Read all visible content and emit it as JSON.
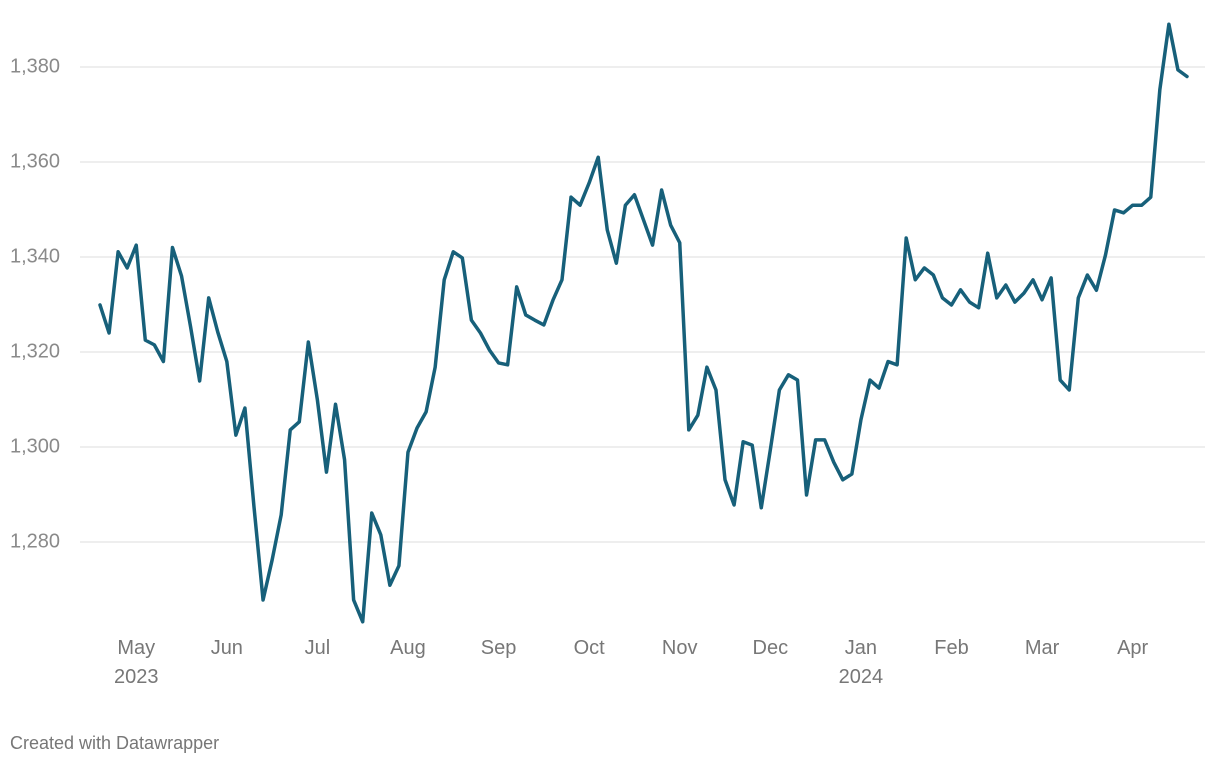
{
  "chart_data": {
    "type": "line",
    "categories": [
      null,
      null,
      null,
      null,
      "May 2023",
      null,
      null,
      null,
      null,
      null,
      null,
      null,
      null,
      null,
      "Jun",
      null,
      null,
      null,
      null,
      null,
      null,
      null,
      null,
      null,
      "Jul",
      null,
      null,
      null,
      null,
      null,
      null,
      null,
      null,
      null,
      "Aug",
      null,
      null,
      null,
      null,
      null,
      null,
      null,
      null,
      null,
      "Sep",
      null,
      null,
      null,
      null,
      null,
      null,
      null,
      null,
      null,
      "Oct",
      null,
      null,
      null,
      null,
      null,
      null,
      null,
      null,
      null,
      "Nov",
      null,
      null,
      null,
      null,
      null,
      null,
      null,
      null,
      null,
      "Dec",
      null,
      null,
      null,
      null,
      null,
      null,
      null,
      null,
      null,
      "Jan 2024",
      null,
      null,
      null,
      null,
      null,
      null,
      null,
      null,
      null,
      "Feb",
      null,
      null,
      null,
      null,
      null,
      null,
      null,
      null,
      null,
      "Mar",
      null,
      null,
      null,
      null,
      null,
      null,
      null,
      null,
      null,
      "Apr",
      null,
      null,
      null,
      null,
      null,
      null
    ],
    "series": [
      {
        "color": "#17607a",
        "values": [
          1329.9,
          1324,
          1341.1,
          1337.7,
          1342.5,
          1322.5,
          1321.5,
          1318,
          1342,
          1336,
          1325.3,
          1313.9,
          1331.4,
          1324.2,
          1318,
          1302.5,
          1308.2,
          1287.4,
          1267.8,
          1276.2,
          1285.7,
          1303.6,
          1305.3,
          1322.1,
          1309.9,
          1294.7,
          1309,
          1297.3,
          1267.8,
          1263.2,
          1286.1,
          1281.5,
          1270.9,
          1275,
          1298.9,
          1304,
          1307.4,
          1316.8,
          1335.2,
          1341.1,
          1339.8,
          1326.7,
          1324,
          1320.4,
          1317.7,
          1317.3,
          1333.7,
          1327.8,
          1326.7,
          1325.7,
          1330.9,
          1335.2,
          1352.6,
          1350.9,
          1355.6,
          1361,
          1345.7,
          1338.7,
          1350.9,
          1353.1,
          1347.8,
          1342.5,
          1354.1,
          1346.7,
          1343,
          1303.6,
          1306.7,
          1316.8,
          1312,
          1293.1,
          1287.8,
          1301.1,
          1300.4,
          1287.2,
          1299.4,
          1312,
          1315.2,
          1314.1,
          1289.9,
          1301.5,
          1301.5,
          1296.8,
          1293.1,
          1294.3,
          1305.7,
          1314.1,
          1312.4,
          1318,
          1317.3,
          1344,
          1335.2,
          1337.7,
          1336.2,
          1331.4,
          1329.9,
          1333.1,
          1330.5,
          1329.3,
          1340.8,
          1331.4,
          1334.1,
          1330.5,
          1332.4,
          1335.2,
          1331,
          1335.6,
          1314.1,
          1312,
          1331.4,
          1336.2,
          1333,
          1340.4,
          1349.9,
          1349.3,
          1350.9,
          1350.9,
          1352.6,
          1375.2,
          1389,
          1379.4,
          1378
        ]
      }
    ],
    "ylim": [
      1262,
      1391
    ],
    "yticks": [
      {
        "value": 1280,
        "label": "1,280"
      },
      {
        "value": 1300,
        "label": "1,300"
      },
      {
        "value": 1320,
        "label": "1,320"
      },
      {
        "value": 1340,
        "label": "1,340"
      },
      {
        "value": 1360,
        "label": "1,360"
      },
      {
        "value": 1380,
        "label": "1,380"
      }
    ],
    "grid": true
  },
  "footer": "Created with Datawrapper"
}
